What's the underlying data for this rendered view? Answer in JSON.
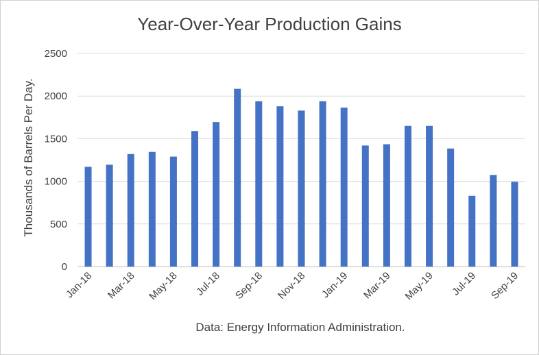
{
  "chart_data": {
    "type": "bar",
    "title": "Year-Over-Year Production Gains",
    "xlabel": "Data: Energy Information Administration.",
    "ylabel": "Thousands of Barrels Per Day.",
    "ylim": [
      0,
      2500
    ],
    "yticks": [
      0,
      500,
      1000,
      1500,
      2000,
      2500
    ],
    "grid": true,
    "bar_color": "#4472C4",
    "categories": [
      "Jan-18",
      "Feb-18",
      "Mar-18",
      "Apr-18",
      "May-18",
      "Jun-18",
      "Jul-18",
      "Aug-18",
      "Sep-18",
      "Oct-18",
      "Nov-18",
      "Dec-18",
      "Jan-19",
      "Feb-19",
      "Mar-19",
      "Apr-19",
      "May-19",
      "Jun-19",
      "Jul-19",
      "Aug-19",
      "Sep-19"
    ],
    "tick_labels": [
      "Jan-18",
      "Mar-18",
      "May-18",
      "Jul-18",
      "Sep-18",
      "Nov-18",
      "Jan-19",
      "Mar-19",
      "May-19",
      "Jul-19",
      "Sep-19"
    ],
    "values": [
      1170,
      1195,
      1320,
      1345,
      1290,
      1590,
      1695,
      2085,
      1940,
      1880,
      1830,
      1940,
      1865,
      1420,
      1435,
      1650,
      1650,
      1385,
      830,
      1075,
      995
    ]
  }
}
